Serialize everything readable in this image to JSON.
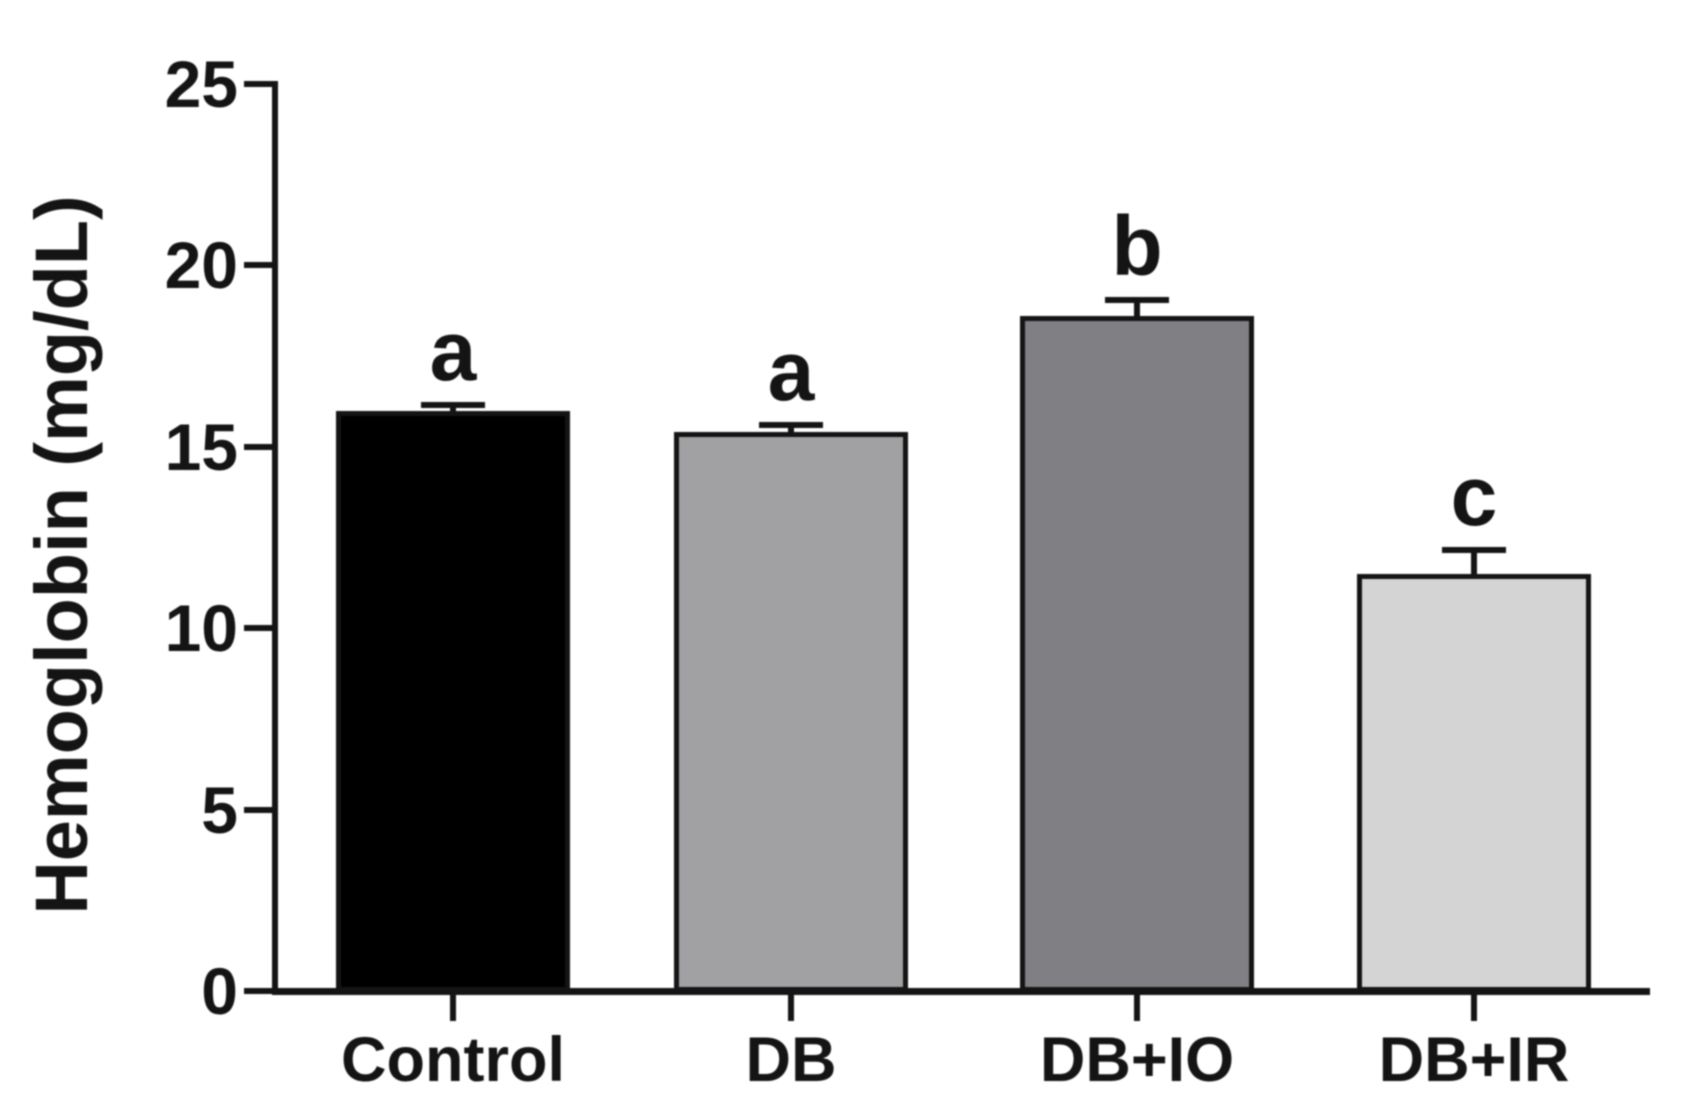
{
  "chart_data": {
    "type": "bar",
    "title": "",
    "ylabel": "Hemoglobin (mg/dL)",
    "xlabel": "",
    "ylim": [
      0,
      25
    ],
    "yticks": [
      0,
      5,
      10,
      15,
      20,
      25
    ],
    "categories": [
      "Control",
      "DB",
      "DB+IO",
      "DB+IR"
    ],
    "values": [
      16.0,
      15.4,
      18.6,
      11.5
    ],
    "errors_upper": [
      0.15,
      0.2,
      0.45,
      0.65
    ],
    "error_bars": "upper only, with caps",
    "sig_letters": [
      "a",
      "a",
      "b",
      "c"
    ],
    "bar_colors": [
      "#000000",
      "#a1a1a4",
      "#808084",
      "#d4d4d5"
    ],
    "bar_border_color": "#141414",
    "axis_color": "#141414",
    "text_color": "#141414",
    "background": "#ffffff",
    "grid": false,
    "legend": null
  }
}
